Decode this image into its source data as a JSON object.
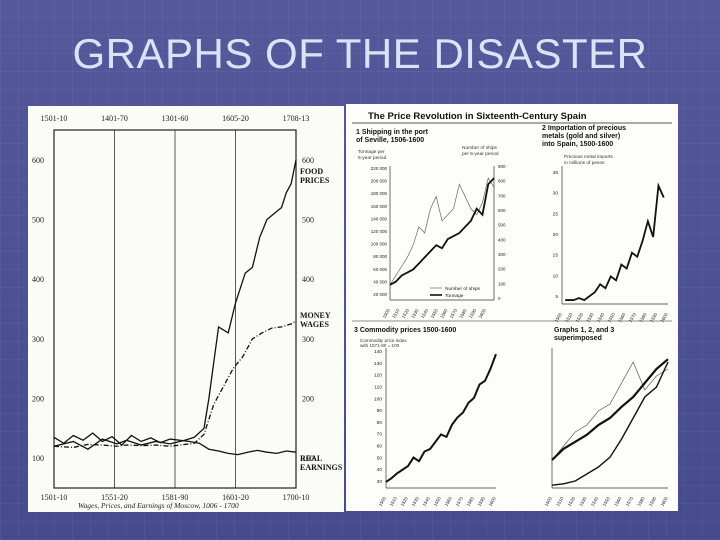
{
  "slide": {
    "title": "GRAPHS OF THE DISASTER"
  },
  "chart_data": [
    {
      "type": "line",
      "title": "",
      "caption": "Wages, Prices, and Earnings of Moscow, 1006 - 1700",
      "top_labels": [
        "1501-10",
        "1401-70",
        "1301-60",
        "1605-20",
        "1708-13"
      ],
      "bottom_labels": [
        "1501-10",
        "1551-20",
        "1581-90",
        "1601-20",
        "1700-10"
      ],
      "left_ticks": [
        "600",
        "500",
        "400",
        "300",
        "200",
        "100"
      ],
      "right_ticks": [
        "600",
        "500",
        "400",
        "300",
        "200",
        "100"
      ],
      "ylim": [
        50,
        650
      ],
      "xlim": [
        0,
        100
      ],
      "series": [
        {
          "name": "FOOD PRICES",
          "style": "solid",
          "x": [
            0,
            8,
            14,
            20,
            26,
            30,
            36,
            42,
            48,
            54,
            58,
            62,
            64,
            66,
            68,
            72,
            75,
            79,
            82,
            85,
            88,
            91,
            94,
            96,
            98,
            100
          ],
          "y": [
            120,
            128,
            115,
            132,
            124,
            130,
            122,
            128,
            124,
            130,
            135,
            150,
            200,
            260,
            320,
            310,
            360,
            410,
            420,
            470,
            500,
            510,
            520,
            545,
            560,
            600
          ]
        },
        {
          "name": "MONEY WAGES",
          "style": "dash-dot",
          "x": [
            0,
            8,
            14,
            20,
            26,
            30,
            36,
            42,
            48,
            54,
            58,
            62,
            66,
            70,
            74,
            78,
            82,
            86,
            90,
            94,
            98,
            100
          ],
          "y": [
            120,
            118,
            123,
            122,
            120,
            122,
            121,
            122,
            120,
            123,
            125,
            140,
            190,
            220,
            250,
            270,
            300,
            310,
            318,
            320,
            325,
            330
          ]
        },
        {
          "name": "REAL EARNINGS",
          "style": "solid",
          "x": [
            0,
            4,
            8,
            12,
            16,
            20,
            24,
            28,
            32,
            36,
            40,
            44,
            48,
            52,
            56,
            60,
            64,
            68,
            72,
            76,
            80,
            84,
            88,
            92,
            96,
            100
          ],
          "y": [
            135,
            125,
            138,
            130,
            142,
            128,
            136,
            122,
            138,
            128,
            134,
            126,
            132,
            130,
            128,
            125,
            115,
            112,
            108,
            106,
            110,
            113,
            110,
            108,
            112,
            110
          ]
        }
      ]
    },
    {
      "type": "line",
      "title": "The Price Revolution in Sixteenth-Century Spain",
      "panels": [
        {
          "label": "1 Shipping in the port of Seville, 1506-1600",
          "left_axis_label": "Tonnage per 5-year period",
          "right_axis_label": "Number of ships per 5-year period",
          "left_ticks": [
            "220 000",
            "200 000",
            "180 000",
            "160 000",
            "140 000",
            "120 000",
            "100 000",
            "80 000",
            "60 000",
            "40 000",
            "20 000"
          ],
          "right_ticks": [
            "900",
            "800",
            "700",
            "600",
            "500",
            "400",
            "300",
            "200",
            "100",
            "0"
          ],
          "ylim": [
            0,
            220000
          ],
          "x": [
            1506,
            1511,
            1516,
            1521,
            1526,
            1531,
            1536,
            1541,
            1546,
            1551,
            1556,
            1561,
            1566,
            1571,
            1576,
            1581,
            1586,
            1591,
            1596
          ],
          "series": [
            {
              "name": "Number of ships",
              "style": "thin",
              "values": [
                25000,
                40000,
                55000,
                70000,
                90000,
                120000,
                110000,
                150000,
                170000,
                130000,
                140000,
                150000,
                190000,
                170000,
                150000,
                140000,
                160000,
                200000,
                185000
              ]
            },
            {
              "name": "Tonnage",
              "style": "thick",
              "values": [
                25000,
                30000,
                40000,
                45000,
                50000,
                60000,
                70000,
                80000,
                90000,
                85000,
                100000,
                105000,
                110000,
                120000,
                130000,
                150000,
                140000,
                190000,
                200000
              ]
            }
          ],
          "legend": [
            "Number of ships",
            "Tonnage"
          ]
        },
        {
          "label": "2 Importation of precious metals (gold and silver) into Spain, 1500-1600",
          "axis_label": "Precious metal imports in millions of pesos",
          "ticks": [
            "35",
            "30",
            "25",
            "20",
            "15",
            "10",
            "5"
          ],
          "ylim": [
            0,
            35
          ],
          "x": [
            1503,
            1511,
            1516,
            1521,
            1526,
            1531,
            1536,
            1541,
            1546,
            1551,
            1556,
            1561,
            1566,
            1571,
            1576,
            1581,
            1586,
            1591,
            1596
          ],
          "series": [
            {
              "name": "Precious metal imports",
              "style": "thick",
              "values": [
                1,
                1,
                1.5,
                1,
                2,
                3,
                5,
                4,
                7,
                6,
                10,
                9,
                13,
                12,
                16,
                21,
                17,
                30,
                27
              ]
            }
          ]
        },
        {
          "label": "3 Commodity prices 1500-1600",
          "axis_label": "Commodity price index, with 1571-80 = 100",
          "ticks": [
            "140",
            "130",
            "120",
            "110",
            "100",
            "90",
            "80",
            "70",
            "60",
            "50",
            "40",
            "30"
          ],
          "ylim": [
            30,
            145
          ],
          "x": [
            1500,
            1505,
            1510,
            1515,
            1520,
            1525,
            1530,
            1535,
            1540,
            1545,
            1550,
            1555,
            1560,
            1565,
            1570,
            1575,
            1580,
            1585,
            1590,
            1595,
            1600
          ],
          "series": [
            {
              "name": "Commodity prices",
              "style": "thick",
              "values": [
                35,
                38,
                42,
                45,
                48,
                55,
                52,
                60,
                62,
                68,
                74,
                72,
                82,
                88,
                92,
                100,
                104,
                115,
                118,
                128,
                140
              ]
            }
          ]
        },
        {
          "label": "Graphs 1, 2, and 3 superimposed",
          "x": [
            1500,
            1510,
            1520,
            1530,
            1540,
            1550,
            1560,
            1570,
            1580,
            1590,
            1600
          ],
          "series": [
            {
              "name": "Shipping",
              "style": "thin",
              "values": [
                0.2,
                0.3,
                0.4,
                0.45,
                0.55,
                0.6,
                0.75,
                0.9,
                0.7,
                0.8,
                0.85
              ]
            },
            {
              "name": "Commodity prices",
              "style": "thick",
              "values": [
                0.2,
                0.28,
                0.33,
                0.38,
                0.45,
                0.5,
                0.58,
                0.65,
                0.75,
                0.85,
                0.92
              ]
            },
            {
              "name": "Precious metals",
              "style": "medium",
              "values": [
                0.02,
                0.03,
                0.05,
                0.1,
                0.15,
                0.22,
                0.35,
                0.5,
                0.65,
                0.72,
                0.9
              ]
            }
          ]
        }
      ],
      "x_tick_labels": [
        "1500",
        "1510",
        "1520",
        "1530",
        "1540",
        "1550",
        "1560",
        "1570",
        "1580",
        "1590",
        "1600"
      ]
    }
  ]
}
